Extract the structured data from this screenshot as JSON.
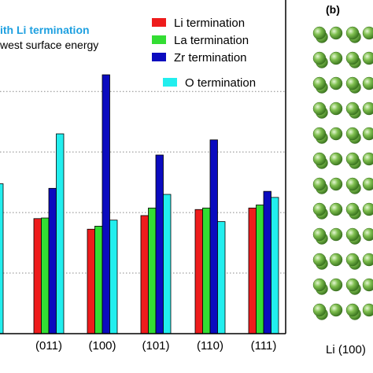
{
  "chart_data": {
    "type": "bar",
    "title": "",
    "xlabel": "",
    "ylabel": "",
    "categories": [
      "(011)",
      "(100)",
      "(101)",
      "(110)",
      "(111)"
    ],
    "ylim": [
      0,
      10.5
    ],
    "grid": true,
    "legend_position": "top-right",
    "series": [
      {
        "name": "Li termination",
        "color": "#ee1c1c",
        "values": [
          3.8,
          3.45,
          3.9,
          4.1,
          4.15
        ]
      },
      {
        "name": "La termination",
        "color": "#33dd33",
        "values": [
          3.82,
          3.55,
          4.15,
          4.15,
          4.25
        ]
      },
      {
        "name": "Zr termination",
        "color": "#0b0bbf",
        "values": [
          4.8,
          8.55,
          5.9,
          6.4,
          4.7
        ]
      },
      {
        "name": "O termination",
        "color": "#22eeee",
        "values": [
          6.6,
          3.75,
          4.6,
          3.7,
          4.5
        ]
      }
    ],
    "partial_bars": [
      {
        "color": "#22eeee",
        "value": 4.95
      }
    ],
    "annotations": [
      {
        "text": "ith Li termination",
        "color": "#1ea0e0"
      },
      {
        "text": "west surface energy",
        "color": "#000000"
      }
    ]
  },
  "structure_panel": {
    "label": "(b)",
    "caption": "Li (100)",
    "atom_color": "#7fbf4f",
    "rows": 12,
    "columns": 4
  }
}
